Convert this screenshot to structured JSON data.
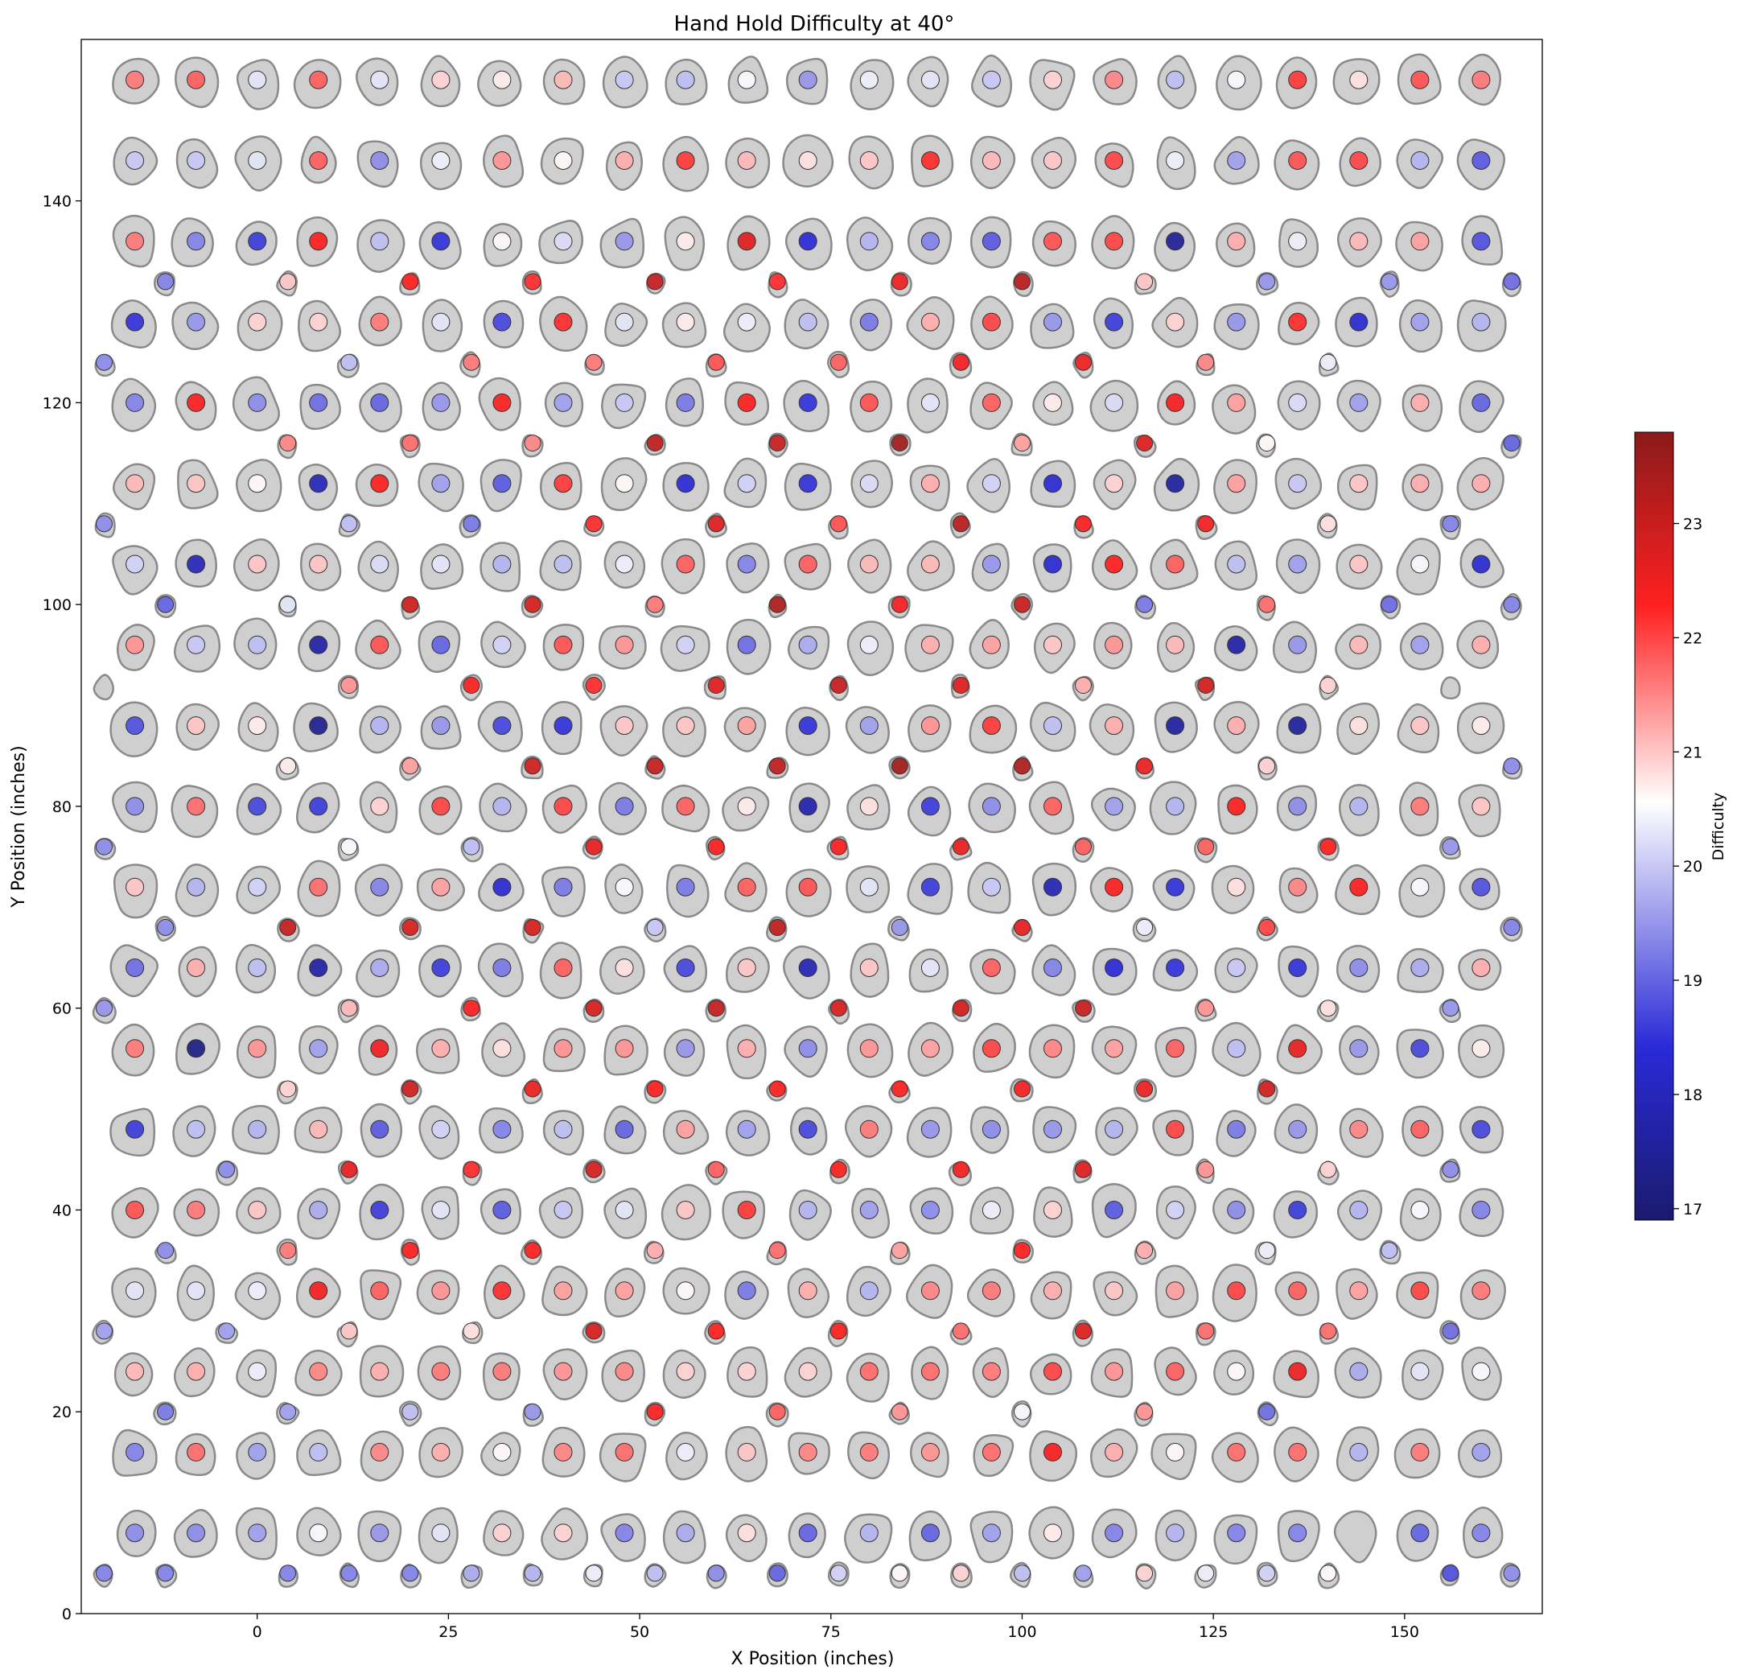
{
  "chart_data": {
    "type": "scatter",
    "title": "Hand Hold Difficulty at 40°",
    "xlabel": "X Position (inches)",
    "ylabel": "Y Position (inches)",
    "xlim": [
      -23,
      168
    ],
    "ylim": [
      0,
      156
    ],
    "xticks": [
      0,
      25,
      50,
      75,
      100,
      125,
      150
    ],
    "yticks": [
      0,
      20,
      40,
      60,
      80,
      100,
      120,
      140
    ],
    "colorbar": {
      "label": "Difficulty",
      "range": [
        16.9,
        23.8
      ],
      "ticks": [
        17,
        18,
        19,
        20,
        21,
        22,
        23
      ],
      "colormap": "seismic",
      "colors": [
        "#1a1a6e",
        "#2a2ad8",
        "#ffffff",
        "#ff2020",
        "#8b1a1a"
      ]
    },
    "grid": false,
    "main_columns_x": [
      -16,
      -8,
      0,
      8,
      16,
      24,
      32,
      40,
      48,
      56,
      64,
      72,
      80,
      88,
      96,
      104,
      112,
      120,
      128,
      136,
      144,
      152,
      160
    ],
    "main_rows": [
      {
        "y": 152,
        "d": [
          21.6,
          21.8,
          20.3,
          21.8,
          20.3,
          20.9,
          20.7,
          21.1,
          20.0,
          19.9,
          20.5,
          19.5,
          20.4,
          20.3,
          20.0,
          20.9,
          21.5,
          19.9,
          20.5,
          22.1,
          20.8,
          21.9,
          21.6
        ]
      },
      {
        "y": 144,
        "d": [
          20.0,
          20.0,
          20.3,
          21.8,
          19.4,
          20.4,
          21.4,
          20.6,
          21.2,
          22.1,
          21.1,
          20.8,
          21.0,
          22.2,
          21.1,
          21.0,
          22.0,
          20.4,
          19.6,
          21.9,
          22.0,
          19.8,
          18.9
        ]
      },
      {
        "y": 136,
        "d": [
          21.6,
          19.3,
          18.6,
          22.3,
          19.9,
          18.5,
          20.6,
          20.2,
          19.5,
          20.7,
          22.7,
          18.4,
          19.8,
          19.3,
          18.9,
          21.9,
          22.0,
          17.5,
          21.2,
          20.4,
          21.1,
          21.3,
          18.8
        ]
      },
      {
        "y": 128,
        "d": [
          18.5,
          19.5,
          20.9,
          20.9,
          21.6,
          20.3,
          18.7,
          22.2,
          20.3,
          20.7,
          20.4,
          19.9,
          19.2,
          21.2,
          22.0,
          19.5,
          18.6,
          20.9,
          19.5,
          22.2,
          18.3,
          19.6,
          19.8
        ]
      },
      {
        "y": 120,
        "d": [
          19.3,
          22.3,
          19.4,
          19.1,
          19.0,
          19.5,
          22.3,
          19.6,
          20.0,
          19.2,
          22.3,
          18.5,
          21.9,
          20.3,
          21.8,
          20.7,
          20.2,
          22.4,
          21.3,
          20.2,
          19.6,
          21.2,
          19.0
        ]
      },
      {
        "y": 112,
        "d": [
          21.1,
          21.0,
          20.6,
          18.0,
          22.3,
          19.6,
          18.9,
          22.1,
          20.6,
          18.4,
          20.1,
          18.5,
          20.2,
          21.2,
          20.1,
          18.3,
          20.9,
          17.6,
          21.3,
          20.0,
          21.0,
          21.2,
          21.2
        ]
      },
      {
        "y": 104,
        "d": [
          20.1,
          18.0,
          21.0,
          21.0,
          20.2,
          20.3,
          19.8,
          19.9,
          20.4,
          21.8,
          19.3,
          21.8,
          21.1,
          21.1,
          19.5,
          18.3,
          22.3,
          21.8,
          19.9,
          19.6,
          21.0,
          20.5,
          18.3
        ]
      },
      {
        "y": 96,
        "d": [
          21.4,
          20.0,
          19.9,
          17.7,
          21.9,
          19.0,
          20.1,
          21.9,
          21.4,
          20.1,
          19.1,
          19.7,
          20.4,
          21.2,
          21.3,
          21.0,
          21.4,
          21.1,
          17.7,
          19.5,
          21.1,
          19.6,
          21.2
        ]
      },
      {
        "y": 88,
        "d": [
          18.8,
          21.0,
          20.7,
          17.4,
          19.8,
          19.5,
          18.7,
          18.5,
          21.0,
          21.0,
          21.3,
          18.5,
          19.6,
          21.4,
          22.1,
          19.9,
          21.2,
          17.6,
          21.2,
          17.6,
          20.8,
          21.0,
          20.7
        ]
      },
      {
        "y": 80,
        "d": [
          19.4,
          21.7,
          18.7,
          18.6,
          20.9,
          22.0,
          19.8,
          22.0,
          19.2,
          21.8,
          20.7,
          17.8,
          20.8,
          18.6,
          19.4,
          21.8,
          19.6,
          19.8,
          22.3,
          19.4,
          19.8,
          21.6,
          21.0
        ]
      },
      {
        "y": 72,
        "d": [
          21.0,
          19.8,
          20.1,
          21.7,
          19.3,
          21.3,
          18.3,
          19.2,
          20.5,
          19.2,
          21.8,
          21.9,
          20.3,
          18.6,
          20.0,
          17.9,
          22.3,
          18.5,
          20.8,
          21.5,
          22.3,
          20.5,
          18.8
        ]
      },
      {
        "y": 64,
        "d": [
          19.1,
          21.2,
          19.9,
          17.7,
          19.7,
          18.6,
          19.2,
          21.8,
          20.8,
          18.7,
          21.0,
          17.9,
          21.0,
          20.3,
          21.8,
          19.3,
          18.4,
          18.5,
          20.0,
          18.5,
          19.4,
          19.7,
          21.2
        ]
      },
      {
        "y": 56,
        "d": [
          21.6,
          17.2,
          21.4,
          19.6,
          22.5,
          21.2,
          20.8,
          21.4,
          21.4,
          19.5,
          21.2,
          19.4,
          21.4,
          21.3,
          22.0,
          21.5,
          21.3,
          21.8,
          19.9,
          22.6,
          19.5,
          18.7,
          20.7
        ]
      },
      {
        "y": 48,
        "d": [
          18.6,
          19.9,
          19.8,
          21.1,
          18.9,
          20.1,
          19.3,
          19.9,
          19.0,
          21.3,
          19.6,
          18.7,
          21.6,
          19.5,
          19.4,
          19.5,
          19.8,
          22.0,
          19.2,
          19.5,
          21.5,
          21.8,
          18.7
        ]
      },
      {
        "y": 40,
        "d": [
          21.9,
          21.6,
          21.0,
          19.7,
          18.6,
          20.3,
          18.9,
          20.0,
          20.3,
          21.0,
          22.1,
          19.8,
          19.6,
          19.4,
          20.4,
          20.9,
          18.9,
          20.1,
          19.4,
          18.6,
          19.8,
          20.5,
          19.3
        ]
      },
      {
        "y": 32,
        "d": [
          20.3,
          20.3,
          20.4,
          22.4,
          21.8,
          21.4,
          22.2,
          21.3,
          21.3,
          20.6,
          19.2,
          21.2,
          19.8,
          21.5,
          21.6,
          21.2,
          21.0,
          21.3,
          22.0,
          21.8,
          21.3,
          22.0,
          21.6
        ]
      },
      {
        "y": 24,
        "d": [
          21.1,
          21.2,
          20.4,
          21.5,
          21.2,
          21.6,
          21.6,
          21.4,
          21.5,
          20.9,
          20.9,
          20.9,
          21.7,
          21.7,
          21.6,
          22.0,
          21.4,
          21.8,
          20.6,
          22.5,
          19.7,
          20.3,
          20.5
        ]
      },
      {
        "y": 16,
        "d": [
          19.3,
          21.7,
          19.6,
          19.9,
          21.5,
          21.2,
          20.6,
          21.5,
          21.7,
          20.4,
          21.0,
          21.5,
          21.6,
          21.4,
          21.7,
          22.4,
          21.2,
          20.6,
          21.7,
          21.7,
          19.8,
          21.6,
          19.6
        ]
      },
      {
        "y": 8,
        "d": [
          19.4,
          19.4,
          19.6,
          20.5,
          19.5,
          20.3,
          20.9,
          20.9,
          19.3,
          19.7,
          20.8,
          19.0,
          19.8,
          19.0,
          19.6,
          20.7,
          19.3,
          19.8,
          19.3,
          19.3,
          null,
          19.0,
          19.3
        ]
      }
    ],
    "offset_rows": [
      {
        "y": 132,
        "x": [
          -12,
          4,
          20,
          36,
          52,
          68,
          84,
          100,
          116,
          132,
          148,
          164
        ],
        "d": [
          19.3,
          21.0,
          22.3,
          22.2,
          23.0,
          22.2,
          22.5,
          23.2,
          21.0,
          19.5,
          19.5,
          19.1
        ]
      },
      {
        "y": 124,
        "x": [
          -20,
          12,
          28,
          44,
          60,
          76,
          92,
          108,
          124,
          140
        ],
        "d": [
          19.4,
          19.9,
          21.6,
          21.6,
          21.9,
          21.8,
          22.4,
          22.5,
          21.5,
          20.4
        ]
      },
      {
        "y": 116,
        "x": [
          4,
          20,
          36,
          52,
          68,
          84,
          100,
          116,
          132,
          164
        ],
        "d": [
          21.5,
          21.7,
          21.5,
          23.1,
          23.0,
          23.5,
          21.3,
          22.7,
          20.6,
          19.0
        ]
      },
      {
        "y": 108,
        "x": [
          -20,
          12,
          28,
          44,
          60,
          76,
          92,
          108,
          124,
          140,
          156
        ],
        "d": [
          19.4,
          19.9,
          19.2,
          22.2,
          22.7,
          21.9,
          23.2,
          22.3,
          22.4,
          20.8,
          19.3
        ]
      },
      {
        "y": 100,
        "x": [
          -12,
          4,
          20,
          36,
          52,
          68,
          84,
          100,
          116,
          132,
          148,
          164
        ],
        "d": [
          19.0,
          20.3,
          22.9,
          22.8,
          21.6,
          23.3,
          22.4,
          23.0,
          19.2,
          21.7,
          19.1,
          19.3
        ]
      },
      {
        "y": 92,
        "x": [
          -20,
          12,
          28,
          44,
          60,
          76,
          92,
          108,
          124,
          140,
          156
        ],
        "d": [
          null,
          21.4,
          22.3,
          22.2,
          22.7,
          23.0,
          22.7,
          21.2,
          22.9,
          20.9,
          null
        ]
      },
      {
        "y": 84,
        "x": [
          4,
          20,
          36,
          52,
          68,
          84,
          100,
          116,
          132,
          164
        ],
        "d": [
          20.7,
          21.3,
          22.9,
          23.0,
          23.1,
          23.5,
          23.3,
          22.5,
          20.9,
          19.4
        ]
      },
      {
        "y": 76,
        "x": [
          -20,
          12,
          28,
          44,
          60,
          76,
          92,
          108,
          124,
          140,
          156
        ],
        "d": [
          19.4,
          20.5,
          19.9,
          22.6,
          22.3,
          22.3,
          22.6,
          21.8,
          21.8,
          22.3,
          19.5
        ]
      },
      {
        "y": 68,
        "x": [
          -12,
          4,
          20,
          36,
          52,
          68,
          84,
          100,
          116,
          132,
          164
        ],
        "d": [
          19.4,
          23.0,
          22.8,
          22.8,
          20.0,
          23.1,
          19.5,
          22.6,
          20.4,
          22.0,
          19.3
        ]
      },
      {
        "y": 60,
        "x": [
          -20,
          12,
          28,
          44,
          60,
          76,
          92,
          108,
          124,
          140,
          156
        ],
        "d": [
          19.5,
          21.1,
          22.3,
          22.8,
          23.0,
          22.8,
          22.9,
          23.0,
          21.4,
          20.8,
          19.5
        ]
      },
      {
        "y": 52,
        "x": [
          4,
          20,
          36,
          52,
          68,
          84,
          100,
          116,
          132
        ],
        "d": [
          20.9,
          22.9,
          22.5,
          22.3,
          22.3,
          22.3,
          22.4,
          22.5,
          22.9
        ]
      },
      {
        "y": 44,
        "x": [
          -4,
          12,
          28,
          44,
          60,
          76,
          92,
          108,
          124,
          140,
          156
        ],
        "d": [
          19.4,
          22.6,
          22.2,
          22.8,
          21.8,
          22.3,
          22.4,
          22.7,
          21.4,
          20.9,
          19.4
        ]
      },
      {
        "y": 36,
        "x": [
          -12,
          4,
          20,
          36,
          52,
          68,
          84,
          100,
          116,
          132,
          148
        ],
        "d": [
          19.4,
          21.6,
          22.3,
          22.3,
          21.2,
          21.7,
          21.3,
          22.3,
          21.2,
          20.4,
          19.9
        ]
      },
      {
        "y": 28,
        "x": [
          -20,
          -4,
          12,
          28,
          44,
          60,
          76,
          92,
          108,
          124,
          140,
          156
        ],
        "d": [
          19.6,
          19.6,
          21.0,
          20.8,
          22.8,
          22.3,
          22.3,
          21.7,
          22.7,
          21.7,
          21.7,
          19.1
        ]
      },
      {
        "y": 20,
        "x": [
          -12,
          4,
          20,
          36,
          52,
          68,
          84,
          100,
          116,
          132
        ],
        "d": [
          19.2,
          19.6,
          19.9,
          19.5,
          22.3,
          21.8,
          21.4,
          20.5,
          21.4,
          19.1
        ]
      },
      {
        "y": 4,
        "x": [
          -20,
          -12,
          4,
          12,
          20,
          28,
          36,
          44,
          52,
          60,
          68,
          76,
          84,
          92,
          100,
          108,
          116,
          124,
          132,
          140,
          156,
          164
        ],
        "d": [
          19.3,
          19.3,
          19.3,
          19.3,
          19.3,
          19.7,
          19.8,
          20.4,
          19.9,
          19.4,
          19.0,
          20.1,
          20.6,
          20.9,
          19.9,
          19.6,
          20.9,
          20.4,
          20.1,
          20.6,
          18.8,
          19.4
        ]
      }
    ]
  }
}
